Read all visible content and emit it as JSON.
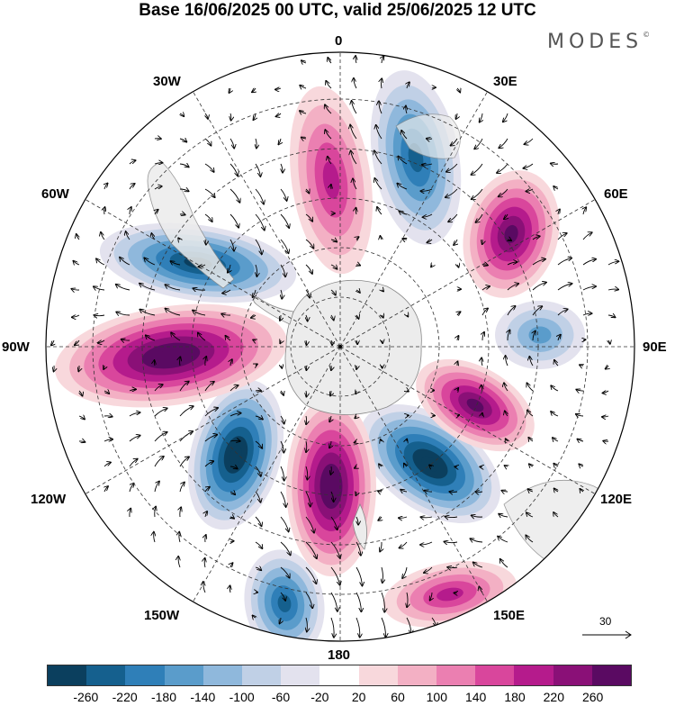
{
  "title": "Base 16/06/2025 00 UTC, valid 25/06/2025 12 UTC",
  "brand": "MODES",
  "brand_mark": "©",
  "longitude_labels": {
    "lon0": "0",
    "lon30e": "30E",
    "lon60e": "60E",
    "lon90e": "90E",
    "lon120e": "120E",
    "lon150e": "150E",
    "lon180": "180",
    "lon150w": "150W",
    "lon120w": "120W",
    "lon90w": "90W",
    "lon60w": "60W",
    "lon30w": "30W"
  },
  "reference_vector": "30",
  "colorbar": {
    "ticks": [
      "-260",
      "-220",
      "-180",
      "-140",
      "-100",
      "-60",
      "-20",
      "20",
      "60",
      "100",
      "140",
      "180",
      "220",
      "260"
    ],
    "colors": [
      "#0b3f5e",
      "#15608e",
      "#2f7fb8",
      "#5a9ccb",
      "#8fb8dc",
      "#c0d0e6",
      "#e3e2ee",
      "#ffffff",
      "#f8d8dc",
      "#f3b0c4",
      "#eb7fb1",
      "#d9469c",
      "#b51b8c",
      "#8a1077",
      "#5a0a62"
    ]
  },
  "anomaly_centers": [
    {
      "name": "neg-south-atlantic",
      "sign": "negative",
      "level": -180
    },
    {
      "name": "pos-south-indian-west",
      "sign": "positive",
      "level": 140
    },
    {
      "name": "neg-south-indian-east",
      "sign": "negative",
      "level": -100
    },
    {
      "name": "pos-indian-sector",
      "sign": "positive",
      "level": 220
    },
    {
      "name": "neg-tasman-south",
      "sign": "negative",
      "level": -260
    },
    {
      "name": "pos-ross-sea",
      "sign": "positive",
      "level": 260
    },
    {
      "name": "neg-amundsen",
      "sign": "negative",
      "level": -260
    },
    {
      "name": "pos-pacific-west",
      "sign": "positive",
      "level": 260
    },
    {
      "name": "neg-pacific-southwest",
      "sign": "negative",
      "level": -220
    },
    {
      "name": "pos-weddell",
      "sign": "positive",
      "level": 220
    },
    {
      "name": "neg-new-zealand-north",
      "sign": "negative",
      "level": -180
    },
    {
      "name": "pos-pacific-far",
      "sign": "positive",
      "level": 140
    }
  ]
}
